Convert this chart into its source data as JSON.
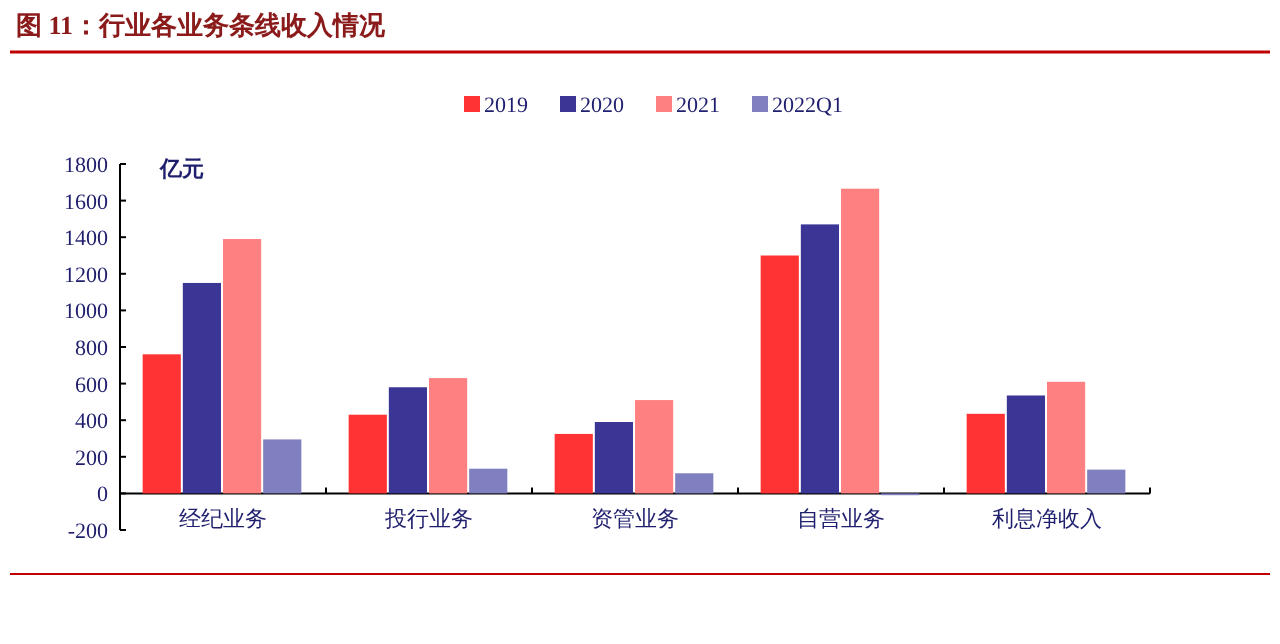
{
  "chart_data": {
    "type": "bar",
    "title": "图 11：行业各业务条线收入情况",
    "ylabel": "亿元",
    "categories": [
      "经纪业务",
      "投行业务",
      "资管业务",
      "自营业务",
      "利息净收入"
    ],
    "series": [
      {
        "name": "2019",
        "color": "#ff3333",
        "values": [
          760,
          430,
          325,
          1300,
          435
        ]
      },
      {
        "name": "2020",
        "color": "#3b3595",
        "values": [
          1150,
          580,
          390,
          1470,
          535
        ]
      },
      {
        "name": "2021",
        "color": "#ff8080",
        "values": [
          1390,
          630,
          510,
          1665,
          610
        ]
      },
      {
        "name": "2022Q1",
        "color": "#8080c0",
        "values": [
          295,
          135,
          110,
          -10,
          130
        ]
      }
    ],
    "ylim": [
      -200,
      1800
    ],
    "yticks": [
      -200,
      0,
      200,
      400,
      600,
      800,
      1000,
      1200,
      1400,
      1600,
      1800
    ],
    "legend": "top right",
    "grid": false
  }
}
